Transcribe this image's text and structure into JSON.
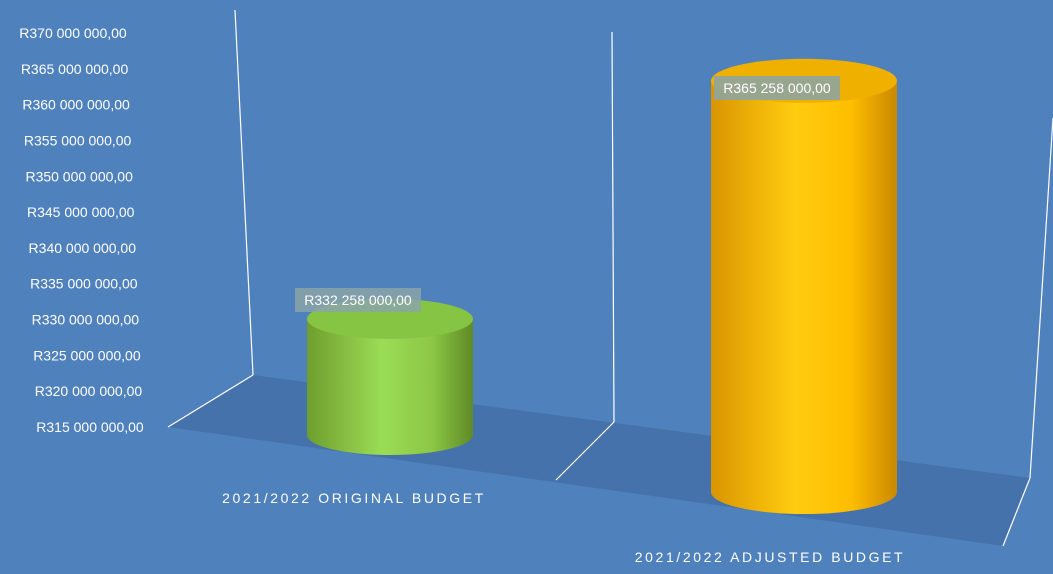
{
  "chart_data": {
    "type": "bar",
    "subtype": "3d-cylinder",
    "categories": [
      "2021/2022 ORIGINAL BUDGET",
      "2021/2022 ADJUSTED BUDGET"
    ],
    "series": [
      {
        "values": [
          332258000,
          365258000
        ]
      }
    ],
    "data_labels": [
      "R332 258 000,00",
      "R365 258 000,00"
    ],
    "y_ticks": [
      "R315 000 000,00",
      "R320 000 000,00",
      "R325 000 000,00",
      "R330 000 000,00",
      "R335 000 000,00",
      "R340 000 000,00",
      "R345 000 000,00",
      "R350 000 000,00",
      "R355 000 000,00",
      "R360 000 000,00",
      "R365 000 000,00",
      "R370 000 000,00"
    ],
    "ylim": [
      315000000,
      370000000
    ],
    "colors": {
      "background": "#4f81bd",
      "floor": "#4672ab",
      "bar_1": "#92d050",
      "bar_2": "#ffc000",
      "label_box": "#8aa4a8"
    },
    "grid": false,
    "legend": "none"
  }
}
